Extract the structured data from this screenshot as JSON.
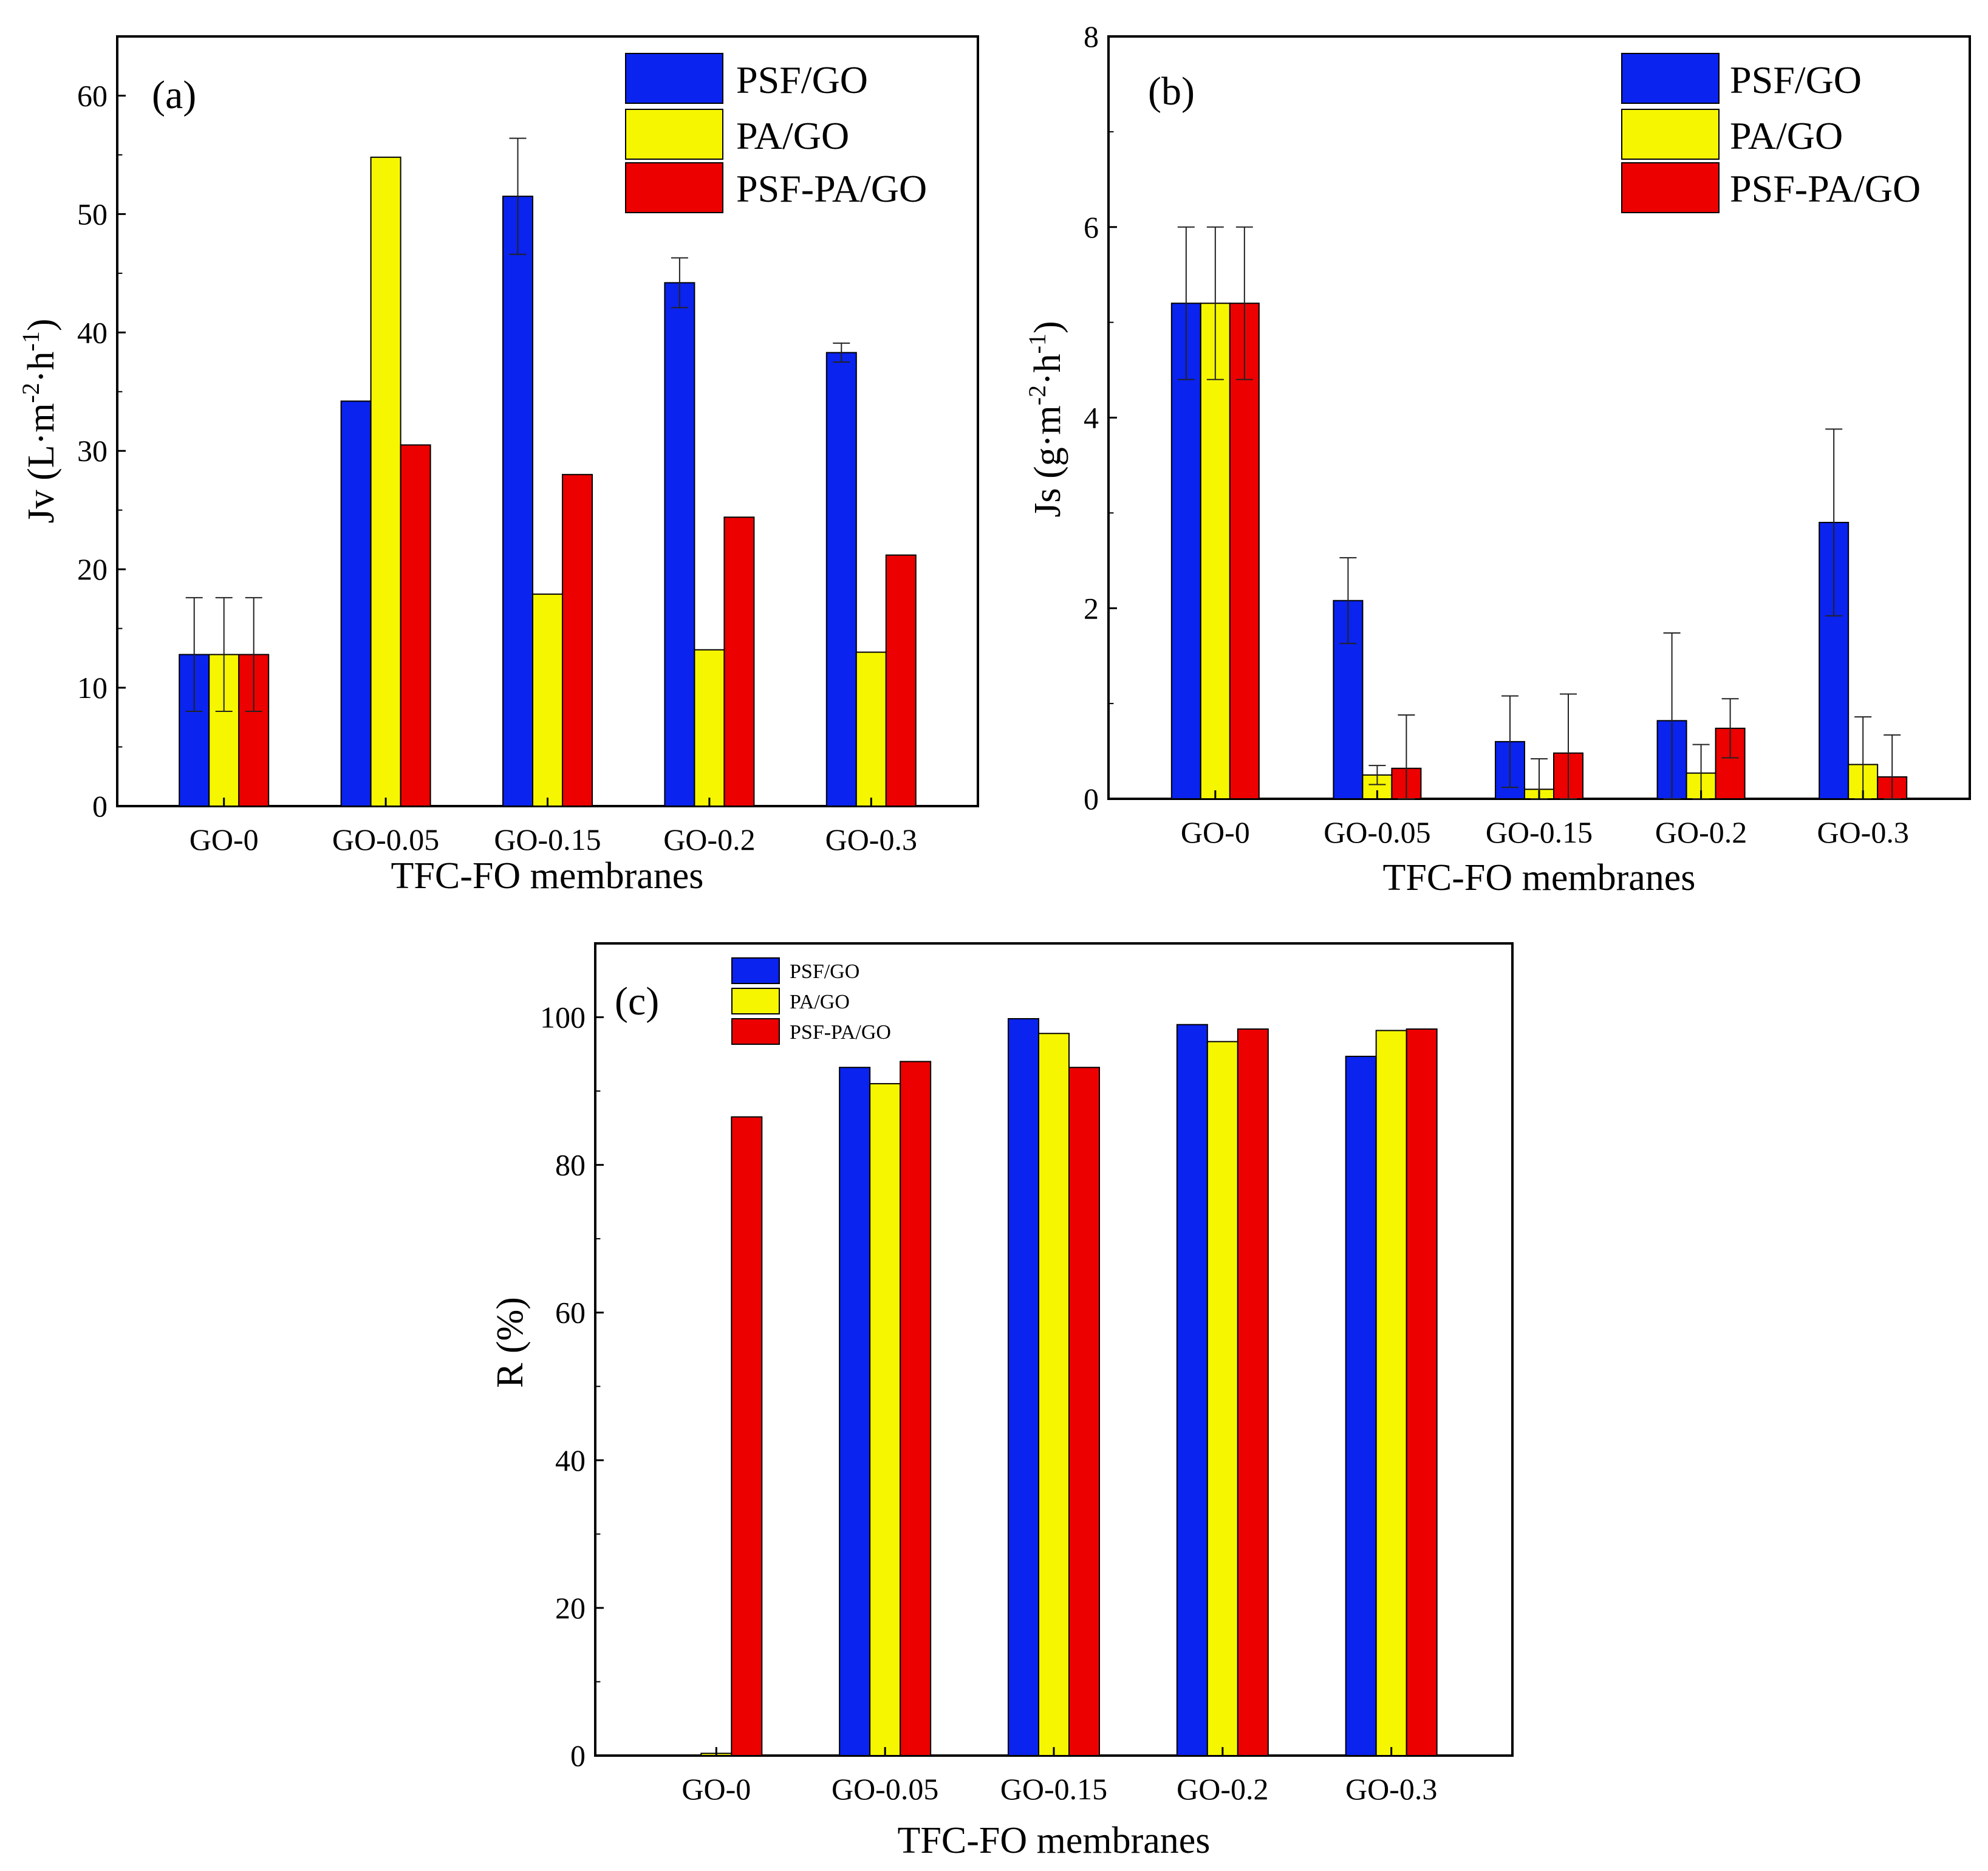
{
  "colors": {
    "psf_go": "#0a23ee",
    "pa_go": "#f6f600",
    "psf_pa_go": "#ec0000",
    "axis": "#000000"
  },
  "chart_data": [
    {
      "id": "a",
      "type": "bar",
      "panel_label": "(a)",
      "title": "",
      "xlabel": "TFC-FO membranes",
      "ylabel": "Jv (L·m",
      "ylabel_sup1": "-2",
      "ylabel_mid": "·h",
      "ylabel_sup2": "-1",
      "ylabel_end": ")",
      "ylim": [
        0,
        65
      ],
      "yticks": [
        0,
        10,
        20,
        30,
        40,
        50,
        60
      ],
      "legend_position": "top-right",
      "categories": [
        "GO-0",
        "GO-0.05",
        "GO-0.15",
        "GO-0.2",
        "GO-0.3"
      ],
      "series": [
        {
          "name": "PSF/GO",
          "color_key": "psf_go",
          "values": [
            12.8,
            34.2,
            51.5,
            44.2,
            38.3
          ],
          "errors": [
            4.8,
            null,
            4.9,
            2.1,
            0.8
          ]
        },
        {
          "name": "PA/GO",
          "color_key": "pa_go",
          "values": [
            12.8,
            54.8,
            17.9,
            13.2,
            13.0
          ],
          "errors": [
            4.8,
            null,
            null,
            null,
            null
          ]
        },
        {
          "name": "PSF-PA/GO",
          "color_key": "psf_pa_go",
          "values": [
            12.8,
            30.5,
            28.0,
            24.4,
            21.2
          ],
          "errors": [
            4.8,
            null,
            null,
            null,
            null
          ]
        }
      ]
    },
    {
      "id": "b",
      "type": "bar",
      "panel_label": "(b)",
      "title": "",
      "xlabel": "TFC-FO membranes",
      "ylabel": "Js (g·m",
      "ylabel_sup1": "-2",
      "ylabel_mid": "·h",
      "ylabel_sup2": "-1",
      "ylabel_end": ")",
      "ylim": [
        0,
        8
      ],
      "yticks": [
        0,
        2,
        4,
        6,
        8
      ],
      "legend_position": "top-right",
      "categories": [
        "GO-0",
        "GO-0.05",
        "GO-0.15",
        "GO-0.2",
        "GO-0.3"
      ],
      "series": [
        {
          "name": "PSF/GO",
          "color_key": "psf_go",
          "values": [
            5.2,
            2.08,
            0.6,
            0.82,
            2.9
          ],
          "errors": [
            0.8,
            0.45,
            0.48,
            0.92,
            0.98
          ]
        },
        {
          "name": "PA/GO",
          "color_key": "pa_go",
          "values": [
            5.2,
            0.25,
            0.1,
            0.27,
            0.36
          ],
          "errors": [
            0.8,
            0.1,
            0.32,
            0.3,
            0.5
          ]
        },
        {
          "name": "PSF-PA/GO",
          "color_key": "psf_pa_go",
          "values": [
            5.2,
            0.32,
            0.48,
            0.74,
            0.23
          ],
          "errors": [
            0.8,
            0.56,
            0.62,
            0.31,
            0.44
          ]
        }
      ]
    },
    {
      "id": "c",
      "type": "bar",
      "panel_label": "(c)",
      "title": "",
      "xlabel": "TFC-FO membranes",
      "ylabel": "R (%)",
      "ylim": [
        0,
        110
      ],
      "yticks": [
        0,
        20,
        40,
        60,
        80,
        100
      ],
      "legend_position": "top-left",
      "categories": [
        "GO-0",
        "GO-0.05",
        "GO-0.15",
        "GO-0.2",
        "GO-0.3"
      ],
      "series": [
        {
          "name": "PSF/GO",
          "color_key": "psf_go",
          "values": [
            0,
            93.2,
            99.8,
            99.0,
            94.7
          ],
          "errors": []
        },
        {
          "name": "PA/GO",
          "color_key": "pa_go",
          "values": [
            0.3,
            91.0,
            97.8,
            96.7,
            98.2
          ],
          "errors": []
        },
        {
          "name": "PSF-PA/GO",
          "color_key": "psf_pa_go",
          "values": [
            86.5,
            94.0,
            93.2,
            98.4,
            98.4
          ],
          "errors": []
        }
      ]
    }
  ]
}
